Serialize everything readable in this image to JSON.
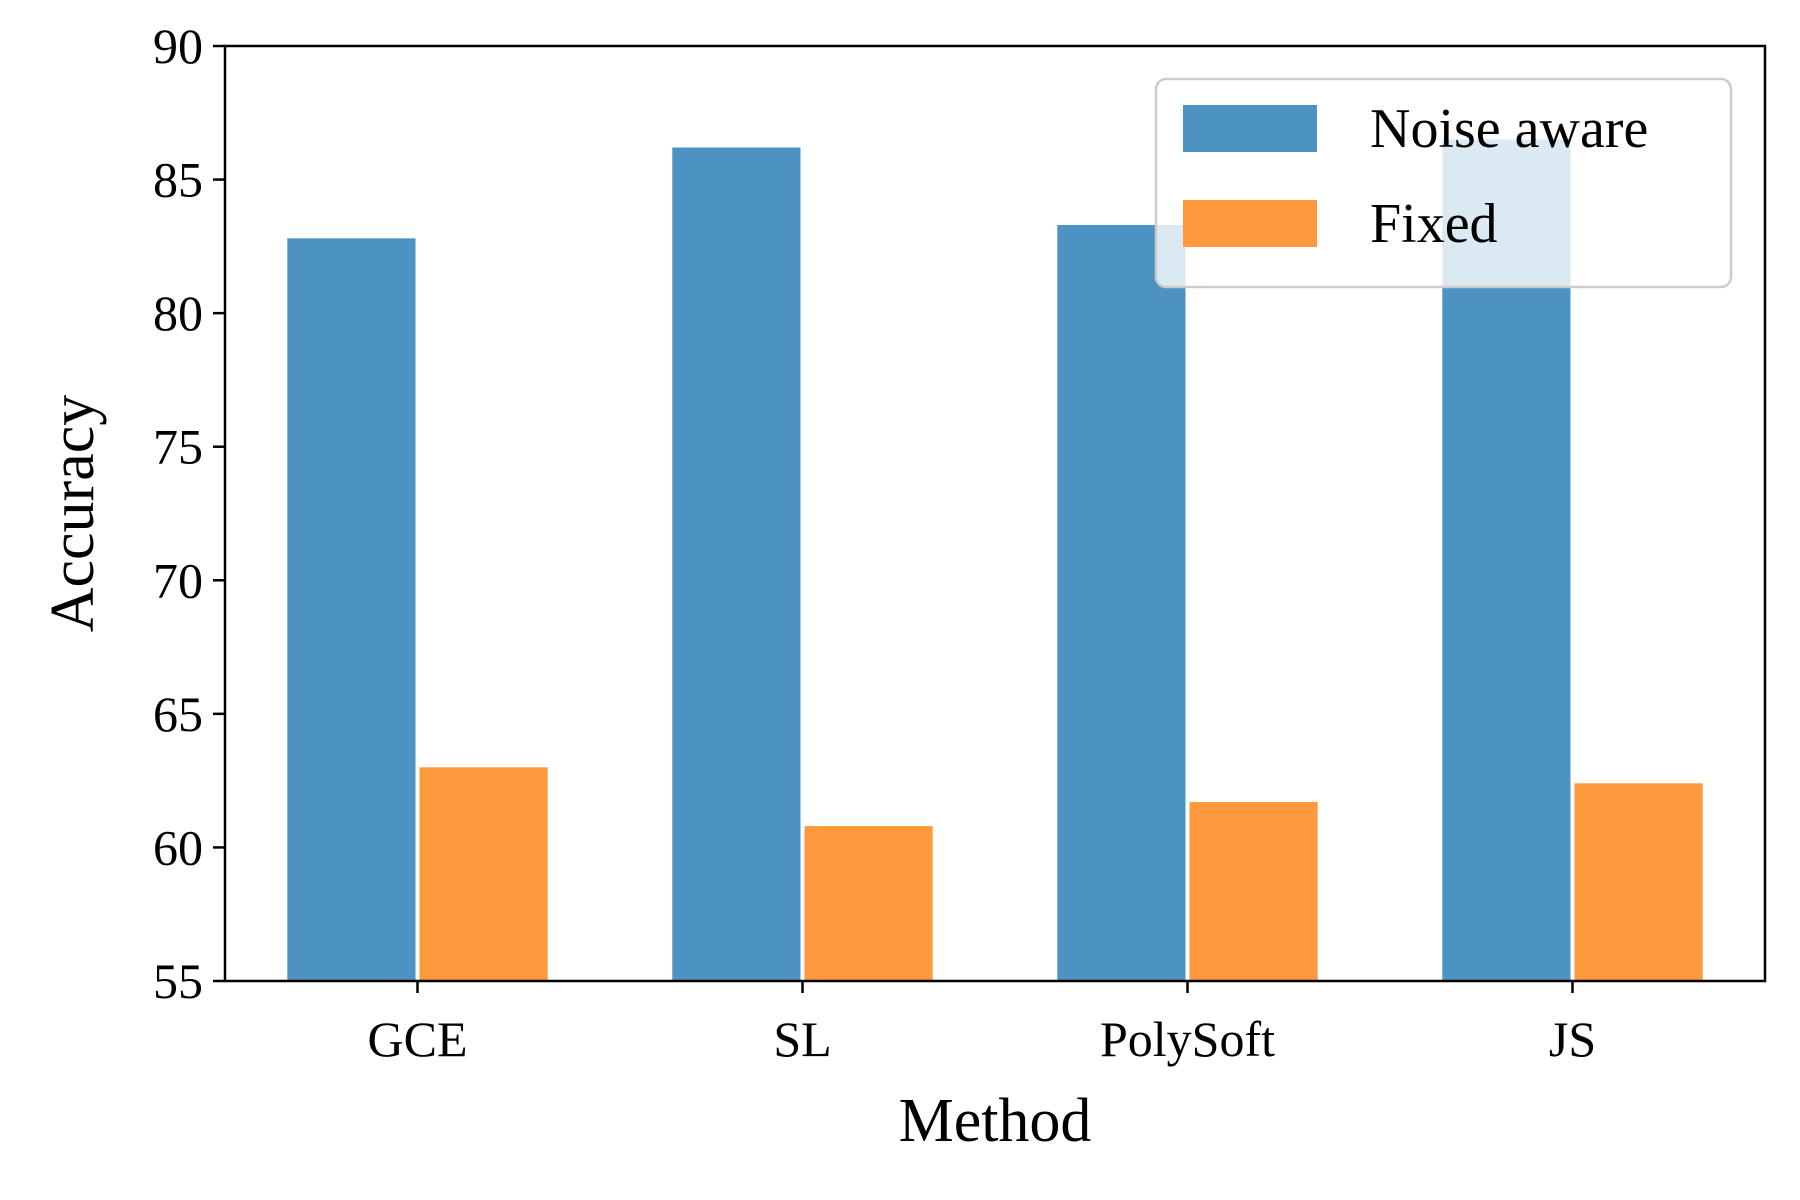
{
  "chart_data": {
    "type": "bar",
    "title": "",
    "xlabel": "Method",
    "ylabel": "Accuracy",
    "categories": [
      "GCE",
      "SL",
      "PolySoft",
      "JS"
    ],
    "series": [
      {
        "name": "Noise aware",
        "color": "#4c92c3",
        "values": [
          82.8,
          86.2,
          83.3,
          86.5
        ]
      },
      {
        "name": "Fixed",
        "color": "#ff993e",
        "values": [
          63.0,
          60.8,
          61.7,
          62.4
        ]
      }
    ],
    "ylim": [
      55,
      90
    ],
    "yticks": [
      55,
      60,
      65,
      70,
      75,
      80,
      85,
      90
    ],
    "grid": false,
    "legend_position": "top-right"
  }
}
